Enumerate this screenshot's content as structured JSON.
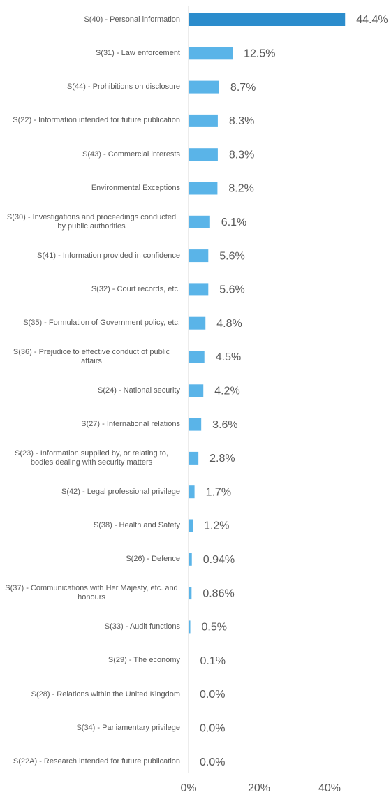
{
  "chart_data": {
    "type": "bar",
    "orientation": "horizontal",
    "categories": [
      "S(40) - Personal information",
      "S(31) - Law enforcement",
      "S(44) - Prohibitions on disclosure",
      "S(22) - Information intended for future publication",
      "S(43) - Commercial interests",
      "Environmental Exceptions",
      "S(30) - Investigations and proceedings conducted by public authorities",
      "S(41) - Information provided in confidence",
      "S(32) - Court records, etc.",
      "S(35) - Formulation of Government policy, etc.",
      "S(36) - Prejudice to effective conduct of public affairs",
      "S(24) - National security",
      "S(27) - International relations",
      "S(23) - Information supplied by, or relating to, bodies dealing with security matters",
      "S(42) - Legal professional privilege",
      "S(38) - Health and Safety",
      "S(26) - Defence",
      "S(37) - Communications with Her Majesty, etc. and honours",
      "S(33) - Audit functions",
      "S(29) - The economy",
      "S(28) - Relations within the United Kingdom",
      "S(34) - Parliamentary privilege",
      "S(22A) - Research intended for future publication"
    ],
    "values": [
      44.4,
      12.5,
      8.7,
      8.3,
      8.3,
      8.2,
      6.1,
      5.6,
      5.6,
      4.8,
      4.5,
      4.2,
      3.6,
      2.8,
      1.7,
      1.2,
      0.94,
      0.86,
      0.5,
      0.1,
      0.0,
      0.0,
      0.0
    ],
    "value_labels": [
      "44.4%",
      "12.5%",
      "8.7%",
      "8.3%",
      "8.3%",
      "8.2%",
      "6.1%",
      "5.6%",
      "5.6%",
      "4.8%",
      "4.5%",
      "4.2%",
      "3.6%",
      "2.8%",
      "1.7%",
      "1.2%",
      "0.94%",
      "0.86%",
      "0.5%",
      "0.1%",
      "0.0%",
      "0.0%",
      "0.0%"
    ],
    "colors": [
      "#2b8ccc",
      "#5ab4e8",
      "#5ab4e8",
      "#5ab4e8",
      "#5ab4e8",
      "#5ab4e8",
      "#5ab4e8",
      "#5ab4e8",
      "#5ab4e8",
      "#5ab4e8",
      "#5ab4e8",
      "#5ab4e8",
      "#5ab4e8",
      "#5ab4e8",
      "#5ab4e8",
      "#5ab4e8",
      "#5ab4e8",
      "#5ab4e8",
      "#5ab4e8",
      "#5ab4e8",
      "#5ab4e8",
      "#5ab4e8",
      "#5ab4e8"
    ],
    "xlim": [
      0,
      50
    ],
    "xticks": [
      {
        "value": 0,
        "label": "0%"
      },
      {
        "value": 20,
        "label": "20%"
      },
      {
        "value": 40,
        "label": "40%"
      }
    ],
    "grid": false
  }
}
